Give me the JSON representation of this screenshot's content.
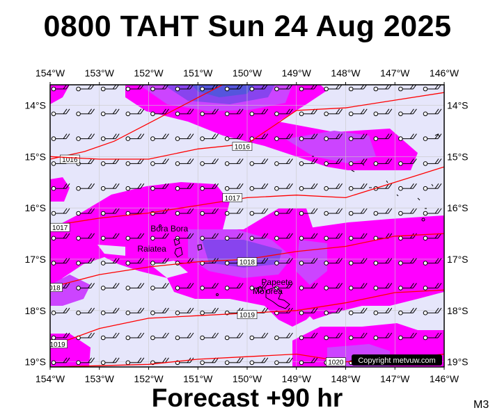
{
  "title": "0800 TAHT Sun 24 Aug 2025",
  "subtitle": "Forecast +90 hr",
  "model_label": "M3",
  "copyright": "Copyright metvuw.com",
  "lon_labels": [
    "154°W",
    "153°W",
    "152°W",
    "151°W",
    "150°W",
    "149°W",
    "148°W",
    "147°W",
    "146°W"
  ],
  "lat_labels": [
    "14°S",
    "15°S",
    "16°S",
    "17°S",
    "18°S",
    "19°S"
  ],
  "lon_values": [
    -154,
    -153,
    -152,
    -151,
    -150,
    -149,
    -148,
    -147,
    -146
  ],
  "lat_values": [
    -14,
    -15,
    -16,
    -17,
    -18,
    -19
  ],
  "extent": {
    "lon_min": -154,
    "lon_max": -146,
    "lat_top": -13.6,
    "lat_bottom": -19.1
  },
  "isobars": [
    {
      "label": "1016",
      "points": [
        [
          -154,
          -15.05
        ],
        [
          -153.3,
          -14.9
        ],
        [
          -152.7,
          -14.7
        ],
        [
          -152,
          -14.35
        ],
        [
          -151.2,
          -13.95
        ],
        [
          -150.5,
          -13.6
        ]
      ],
      "label_at": [
        -153.6,
        -15.05
      ]
    },
    {
      "label": "1016",
      "points": [
        [
          -154,
          -15.0
        ],
        [
          -153,
          -15.05
        ],
        [
          -152,
          -15.05
        ],
        [
          -151,
          -14.85
        ],
        [
          -150,
          -14.75
        ],
        [
          -149,
          -14.1
        ],
        [
          -148,
          -14.05
        ],
        [
          -147,
          -13.9
        ],
        [
          -146,
          -13.75
        ]
      ],
      "label_at": [
        -150.1,
        -14.8
      ]
    },
    {
      "label": "1017",
      "points": [
        [
          -154,
          -16.35
        ],
        [
          -153,
          -16.2
        ],
        [
          -152,
          -16.1
        ],
        [
          -151,
          -15.95
        ],
        [
          -150,
          -15.8
        ],
        [
          -149,
          -15.75
        ],
        [
          -148,
          -15.8
        ],
        [
          -147,
          -15.5
        ],
        [
          -146,
          -15.2
        ]
      ],
      "label_at": [
        -150.3,
        -15.8
      ]
    },
    {
      "label": "1017",
      "points": [
        [
          -154,
          -16.4
        ],
        [
          -153.8,
          -16.4
        ]
      ],
      "label_at": [
        -153.8,
        -16.38
      ]
    },
    {
      "label": "1018",
      "points": [
        [
          -154,
          -17.55
        ],
        [
          -153,
          -17.3
        ],
        [
          -152,
          -17.15
        ],
        [
          -151,
          -17.05
        ],
        [
          -150,
          -17.0
        ],
        [
          -149,
          -16.85
        ],
        [
          -148,
          -16.75
        ],
        [
          -147,
          -16.55
        ],
        [
          -146,
          -16.5
        ]
      ],
      "label_at": [
        -150,
        -17.05
      ]
    },
    {
      "label": "1018",
      "points": [
        [
          -154,
          -17.55
        ],
        [
          -153.9,
          -17.55
        ]
      ],
      "label_at": [
        -153.95,
        -17.55
      ]
    },
    {
      "label": "1019",
      "points": [
        [
          -154,
          -18.7
        ],
        [
          -153,
          -18.35
        ],
        [
          -152,
          -18.15
        ],
        [
          -151,
          -18.1
        ],
        [
          -150,
          -18.05
        ],
        [
          -149,
          -18.0
        ],
        [
          -148,
          -17.85
        ],
        [
          -147,
          -17.65
        ],
        [
          -146,
          -17.6
        ]
      ],
      "label_at": [
        -150,
        -18.08
      ]
    },
    {
      "label": "1019",
      "points": [
        [
          -154,
          -18.7
        ],
        [
          -153.8,
          -18.65
        ]
      ],
      "label_at": [
        -153.85,
        -18.65
      ]
    },
    {
      "label": "1020",
      "points": [
        [
          -154,
          -19.1
        ],
        [
          -152,
          -19.05
        ],
        [
          -151,
          -18.95
        ],
        [
          -150,
          -18.9
        ],
        [
          -149,
          -18.85
        ],
        [
          -148,
          -19.0
        ],
        [
          -147,
          -18.95
        ],
        [
          -146,
          -18.85
        ]
      ],
      "label_at": [
        -148.2,
        -19.0
      ]
    }
  ],
  "places": [
    {
      "name": "Bora Bora",
      "lon": -151.75,
      "lat": -16.5
    },
    {
      "name": "Raiatea",
      "lon": -151.45,
      "lat": -16.8
    },
    {
      "name": "Mo'orea",
      "lon": -149.83,
      "lat": -17.53
    },
    {
      "name": "Papeete",
      "lon": -149.57,
      "lat": -17.53
    }
  ],
  "colors": {
    "land_bg": "#e6e6fb",
    "rain_light": "#ff00ff",
    "rain_mid": "#cc44ff",
    "rain_heavy": "#8844ee",
    "rain_very_heavy": "#5555dd",
    "isobar": "#ff0000",
    "copyright_bg": "#000000"
  }
}
